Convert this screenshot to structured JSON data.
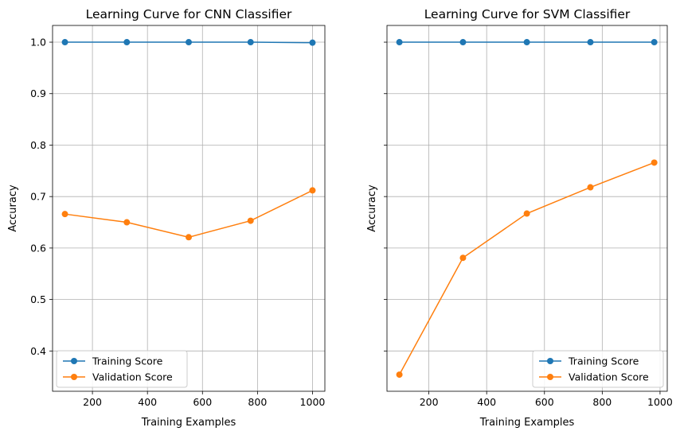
{
  "chart_data": [
    {
      "type": "line",
      "title": "Learning Curve for CNN Classifier",
      "xlabel": "Training Examples",
      "ylabel": "Accuracy",
      "xlim": [
        55,
        1045
      ],
      "ylim": [
        0.3217,
        1.0325
      ],
      "xticks": [
        200,
        400,
        600,
        800,
        1000
      ],
      "yticks": [
        0.4,
        0.5,
        0.6,
        0.7,
        0.8,
        0.9,
        1.0
      ],
      "ytick_labels": [
        "0.4",
        "0.5",
        "0.6",
        "0.7",
        "0.8",
        "0.9",
        "1.0"
      ],
      "grid": true,
      "legend_position": "lower-left",
      "x": [
        100,
        325,
        550,
        775,
        1000
      ],
      "series": [
        {
          "name": "Training Score",
          "color": "#1f77b4",
          "values": [
            1.0,
            1.0,
            1.0,
            1.0,
            0.999
          ]
        },
        {
          "name": "Validation Score",
          "color": "#ff7f0e",
          "values": [
            0.666,
            0.65,
            0.621,
            0.653,
            0.712
          ]
        }
      ]
    },
    {
      "type": "line",
      "title": "Learning Curve for SVM Classifier",
      "xlabel": "Training Examples",
      "ylabel": "Accuracy",
      "xlim": [
        55,
        1025
      ],
      "ylim": [
        0.3217,
        1.0325
      ],
      "xticks": [
        200,
        400,
        600,
        800,
        1000
      ],
      "yticks": [
        0.4,
        0.5,
        0.6,
        0.7,
        0.8,
        0.9,
        1.0
      ],
      "ytick_labels": [],
      "grid": true,
      "legend_position": "lower-right",
      "x": [
        98,
        318,
        539,
        759,
        980
      ],
      "series": [
        {
          "name": "Training Score",
          "color": "#1f77b4",
          "values": [
            1.0,
            1.0,
            1.0,
            1.0,
            1.0
          ]
        },
        {
          "name": "Validation Score",
          "color": "#ff7f0e",
          "values": [
            0.354,
            0.581,
            0.667,
            0.718,
            0.766
          ]
        }
      ]
    }
  ]
}
